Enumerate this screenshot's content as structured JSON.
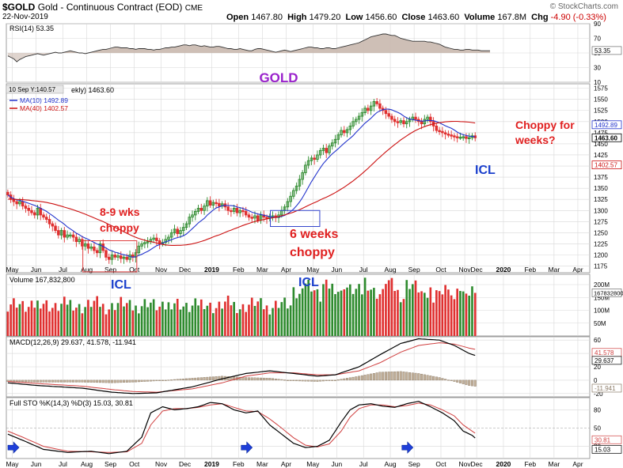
{
  "header": {
    "symbol": "$GOLD",
    "name": "Gold - Continuous Contract (EOD)",
    "exchange": "CME",
    "date": "22-Nov-2019",
    "open_label": "Open",
    "open": "1467.80",
    "high_label": "High",
    "high": "1479.20",
    "low_label": "Low",
    "low": "1456.60",
    "close_label": "Close",
    "close": "1463.60",
    "volume_label": "Volume",
    "volume": "167.8M",
    "chg_label": "Chg",
    "chg": "-4.90 (-0.33%)",
    "brand": "© StockCharts.com"
  },
  "colors": {
    "up": "#2e8b2e",
    "down": "#e03030",
    "ma10": "#2233cc",
    "ma40": "#cc1111",
    "panel_bg": "#ffffff",
    "grid": "#d8d8d8",
    "annot_red": "#e02020",
    "annot_purple": "#9a22cc",
    "annot_blue": "#1a3fcc",
    "rsi_fill": "#c9b8ae"
  },
  "chart_data": [
    {
      "type": "line",
      "panel": "rsi",
      "legend": "RSI(14) 53.35",
      "last_value": "53.35",
      "ylim": [
        10,
        90
      ],
      "yticks": [
        "90",
        "70",
        "50",
        "30",
        "10"
      ],
      "overbought": 70,
      "oversold": 30,
      "values": [
        46,
        44,
        42,
        38,
        41,
        43,
        45,
        46,
        47,
        48,
        49,
        48,
        47,
        48,
        49,
        50,
        51,
        50,
        50,
        51,
        52,
        53,
        52,
        51,
        50,
        50,
        49,
        50,
        51,
        52,
        53,
        54,
        55,
        55,
        56,
        57,
        58,
        58,
        57,
        57,
        57,
        56,
        56,
        55,
        56,
        56,
        56,
        55,
        55,
        54,
        55,
        55,
        56,
        57,
        57,
        58,
        58,
        59,
        60,
        61,
        61,
        60,
        61,
        61,
        60,
        59,
        60,
        59,
        58,
        58,
        59,
        59,
        58,
        57,
        56,
        56,
        55,
        55,
        56,
        55,
        54,
        53,
        53,
        55,
        56,
        56,
        55,
        54,
        53,
        52,
        51,
        52,
        53,
        54,
        53,
        52,
        53,
        54,
        55,
        56,
        57,
        58,
        58,
        57,
        57,
        56,
        56,
        57,
        57,
        56,
        56,
        57,
        58,
        59,
        60,
        61,
        62,
        63,
        64,
        66,
        68,
        70,
        72,
        73,
        74,
        75,
        76,
        76,
        75,
        74,
        74,
        72,
        70,
        69,
        68,
        67,
        66,
        66,
        66,
        66,
        66,
        65,
        65,
        64,
        63,
        62,
        60,
        58,
        57,
        56,
        55,
        55,
        54,
        54,
        55,
        55,
        54,
        54,
        54,
        53,
        53,
        53,
        53
      ]
    },
    {
      "type": "candlestick",
      "panel": "price",
      "title": "GOLD",
      "legend": [
        "MA(10) 1492.89",
        "MA(40) 1402.57"
      ],
      "legend_header": "ekly) 1463.60",
      "crosshair_label": "10 Sep Y:140.57",
      "price_labels": {
        "ma10": "1492.89",
        "close": "1463.60",
        "ma40": "1402.57"
      },
      "ylim": [
        1160,
        1585
      ],
      "yticks": [
        "1575",
        "1550",
        "1525",
        "1500",
        "1475",
        "1450",
        "1425",
        "1400",
        "1375",
        "1350",
        "1325",
        "1300",
        "1275",
        "1250",
        "1225",
        "1200",
        "1175"
      ],
      "x_months": [
        {
          "label": "May",
          "i": 2
        },
        {
          "label": "Jun",
          "i": 10
        },
        {
          "label": "Jul",
          "i": 19
        },
        {
          "label": "Aug",
          "i": 27
        },
        {
          "label": "Sep",
          "i": 35
        },
        {
          "label": "Oct",
          "i": 43
        },
        {
          "label": "Nov",
          "i": 52
        },
        {
          "label": "Dec",
          "i": 60
        },
        {
          "label": "2019",
          "i": 69
        },
        {
          "label": "Feb",
          "i": 78
        },
        {
          "label": "Mar",
          "i": 86
        },
        {
          "label": "Apr",
          "i": 94
        },
        {
          "label": "May",
          "i": 103
        },
        {
          "label": "Jun",
          "i": 111
        },
        {
          "label": "Jul",
          "i": 120
        },
        {
          "label": "Aug",
          "i": 129
        },
        {
          "label": "Sep",
          "i": 137
        },
        {
          "label": "Oct",
          "i": 146
        },
        {
          "label": "Nov",
          "i": 154
        },
        {
          "label": "Dec",
          "i": 158
        },
        {
          "label": "2020",
          "i": 167
        },
        {
          "label": "Feb",
          "i": 176
        },
        {
          "label": "Mar",
          "i": 184
        },
        {
          "label": "Apr",
          "i": 192
        }
      ],
      "closes": [
        1335,
        1325,
        1320,
        1315,
        1320,
        1310,
        1305,
        1300,
        1295,
        1290,
        1305,
        1290,
        1285,
        1280,
        1270,
        1265,
        1255,
        1245,
        1255,
        1240,
        1245,
        1245,
        1240,
        1230,
        1235,
        1220,
        1225,
        1215,
        1218,
        1210,
        1205,
        1225,
        1210,
        1195,
        1190,
        1200,
        1195,
        1198,
        1192,
        1195,
        1190,
        1200,
        1195,
        1205,
        1220,
        1225,
        1228,
        1230,
        1235,
        1238,
        1232,
        1225,
        1228,
        1235,
        1240,
        1250,
        1258,
        1248,
        1255,
        1262,
        1270,
        1285,
        1290,
        1298,
        1305,
        1300,
        1310,
        1322,
        1312,
        1318,
        1316,
        1310,
        1315,
        1308,
        1300,
        1298,
        1305,
        1295,
        1300,
        1298,
        1290,
        1285,
        1283,
        1288,
        1278,
        1290,
        1285,
        1282,
        1285,
        1288,
        1284,
        1290,
        1300,
        1308,
        1320,
        1332,
        1345,
        1355,
        1370,
        1385,
        1402,
        1412,
        1418,
        1415,
        1425,
        1435,
        1440,
        1430,
        1445,
        1452,
        1460,
        1470,
        1480,
        1475,
        1482,
        1490,
        1500,
        1505,
        1512,
        1520,
        1530,
        1525,
        1535,
        1545,
        1540,
        1530,
        1525,
        1518,
        1512,
        1505,
        1500,
        1498,
        1502,
        1495,
        1500,
        1505,
        1510,
        1505,
        1500,
        1495,
        1505,
        1510,
        1500,
        1490,
        1480,
        1478,
        1475,
        1472,
        1470,
        1468,
        1466,
        1465,
        1465,
        1466,
        1462,
        1464,
        1468,
        1463.6
      ]
    },
    {
      "type": "bar",
      "panel": "volume",
      "legend": "Volume 167,832,800",
      "last_value": "167832800",
      "ylim": [
        0,
        240000000
      ],
      "yticks": [
        {
          "label": "200M",
          "v": 200000000
        },
        {
          "label": "150M",
          "v": 150000000
        },
        {
          "label": "100M",
          "v": 100000000
        },
        {
          "label": "50M",
          "v": 50000000
        }
      ],
      "annotation_icl_1": "ICL",
      "annotation_icl_2": "ICL"
    },
    {
      "type": "line",
      "panel": "macd",
      "legend": "MACD(12,26,9) 29.637, 41.578, -11.941",
      "values_label": {
        "macd": "29.637",
        "signal": "41.578",
        "hist": "-11.941"
      },
      "ylim": [
        -25,
        65
      ],
      "yticks": [
        {
          "label": "60",
          "v": 60
        },
        {
          "label": "40",
          "v": 40
        },
        {
          "label": "20",
          "v": 20
        },
        {
          "label": "0",
          "v": 0
        },
        {
          "label": "-20",
          "v": -20
        }
      ],
      "macd_key": [
        [
          0,
          -4
        ],
        [
          10,
          -8
        ],
        [
          25,
          -12
        ],
        [
          35,
          -18
        ],
        [
          42,
          -20
        ],
        [
          50,
          -19
        ],
        [
          62,
          -10
        ],
        [
          72,
          2
        ],
        [
          80,
          10
        ],
        [
          88,
          14
        ],
        [
          96,
          10
        ],
        [
          104,
          6
        ],
        [
          110,
          8
        ],
        [
          118,
          20
        ],
        [
          125,
          38
        ],
        [
          132,
          55
        ],
        [
          138,
          62
        ],
        [
          145,
          60
        ],
        [
          150,
          52
        ],
        [
          155,
          40
        ],
        [
          162,
          29.6
        ]
      ],
      "signal_key": [
        [
          0,
          -2
        ],
        [
          10,
          -5
        ],
        [
          25,
          -9
        ],
        [
          35,
          -14
        ],
        [
          42,
          -17
        ],
        [
          50,
          -18
        ],
        [
          62,
          -13
        ],
        [
          72,
          -4
        ],
        [
          80,
          6
        ],
        [
          88,
          11
        ],
        [
          96,
          11
        ],
        [
          104,
          8
        ],
        [
          110,
          8
        ],
        [
          118,
          14
        ],
        [
          125,
          26
        ],
        [
          132,
          42
        ],
        [
          138,
          52
        ],
        [
          145,
          56
        ],
        [
          150,
          54
        ],
        [
          155,
          48
        ],
        [
          162,
          41.6
        ]
      ]
    },
    {
      "type": "line",
      "panel": "stoch",
      "legend": "Full STO %K(14,3) %D(3) 15.03, 30.81",
      "values_label": {
        "k": "15.03",
        "d": "30.81"
      },
      "ylim": [
        0,
        100
      ],
      "yticks": [
        {
          "label": "80",
          "v": 80
        },
        {
          "label": "50",
          "v": 50
        },
        {
          "label": "20",
          "v": 20
        }
      ],
      "k_key": [
        [
          0,
          40
        ],
        [
          5,
          30
        ],
        [
          12,
          15
        ],
        [
          20,
          10
        ],
        [
          28,
          12
        ],
        [
          34,
          8
        ],
        [
          40,
          12
        ],
        [
          45,
          35
        ],
        [
          48,
          75
        ],
        [
          52,
          85
        ],
        [
          56,
          80
        ],
        [
          60,
          82
        ],
        [
          64,
          85
        ],
        [
          68,
          92
        ],
        [
          72,
          90
        ],
        [
          76,
          80
        ],
        [
          80,
          75
        ],
        [
          84,
          78
        ],
        [
          88,
          55
        ],
        [
          92,
          40
        ],
        [
          96,
          25
        ],
        [
          100,
          18
        ],
        [
          104,
          20
        ],
        [
          108,
          30
        ],
        [
          112,
          60
        ],
        [
          115,
          80
        ],
        [
          118,
          88
        ],
        [
          122,
          90
        ],
        [
          126,
          86
        ],
        [
          130,
          84
        ],
        [
          134,
          90
        ],
        [
          138,
          94
        ],
        [
          142,
          85
        ],
        [
          146,
          75
        ],
        [
          150,
          62
        ],
        [
          153,
          45
        ],
        [
          156,
          38
        ],
        [
          159,
          25
        ],
        [
          162,
          15
        ]
      ],
      "d_key": [
        [
          0,
          45
        ],
        [
          5,
          35
        ],
        [
          12,
          20
        ],
        [
          20,
          12
        ],
        [
          28,
          11
        ],
        [
          34,
          10
        ],
        [
          40,
          11
        ],
        [
          45,
          25
        ],
        [
          48,
          55
        ],
        [
          52,
          78
        ],
        [
          56,
          82
        ],
        [
          60,
          82
        ],
        [
          64,
          84
        ],
        [
          68,
          88
        ],
        [
          72,
          90
        ],
        [
          76,
          84
        ],
        [
          80,
          78
        ],
        [
          84,
          77
        ],
        [
          88,
          65
        ],
        [
          92,
          50
        ],
        [
          96,
          34
        ],
        [
          100,
          22
        ],
        [
          104,
          19
        ],
        [
          108,
          24
        ],
        [
          112,
          45
        ],
        [
          115,
          68
        ],
        [
          118,
          82
        ],
        [
          122,
          88
        ],
        [
          126,
          88
        ],
        [
          130,
          85
        ],
        [
          134,
          87
        ],
        [
          138,
          91
        ],
        [
          142,
          88
        ],
        [
          146,
          80
        ],
        [
          150,
          70
        ],
        [
          153,
          55
        ],
        [
          156,
          45
        ],
        [
          159,
          35
        ],
        [
          162,
          30.8
        ]
      ],
      "arrows_at_index": [
        0,
        80,
        134
      ]
    }
  ],
  "annotations": {
    "gold_title": "GOLD",
    "choppy_1_line1": "8-9 wks",
    "choppy_1_line2": "choppy",
    "choppy_2_line1": "6 weeks",
    "choppy_2_line2": "choppy",
    "choppy_weeks_line1": "Choppy for",
    "choppy_weeks_line2": "weeks?",
    "icl_price": "ICL"
  }
}
